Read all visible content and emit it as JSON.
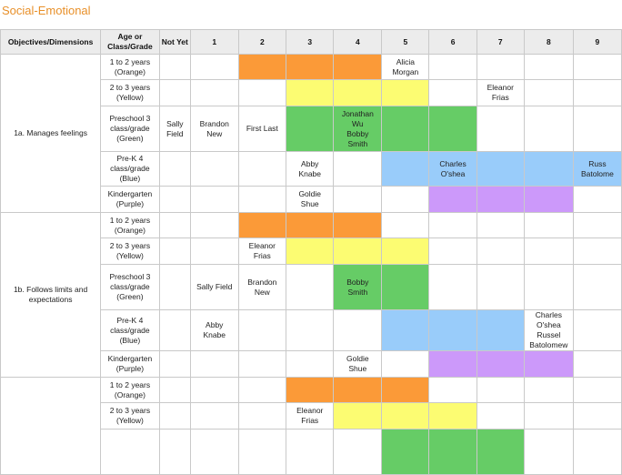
{
  "section_title": "Social-Emotional",
  "headers": [
    "Objectives/Dimensions",
    "Age or Class/Grade",
    "Not Yet",
    "1",
    "2",
    "3",
    "4",
    "5",
    "6",
    "7",
    "8",
    "9"
  ],
  "legend_colors": {
    "orange": "#fb9a38",
    "yellow": "#fcfc72",
    "green": "#66cc66",
    "blue": "#99ccfa",
    "purple": "#cc99fa"
  },
  "groups": [
    {
      "objective": "1a. Manages feelings",
      "rows": [
        {
          "age": "1 to 2 years\n(Orange)",
          "color": "orange",
          "band": [
            4,
            6
          ],
          "names": {
            "7": "Alicia\nMorgan"
          }
        },
        {
          "age": "2 to 3 years\n(Yellow)",
          "color": "yellow",
          "band": [
            5,
            7
          ],
          "names": {
            "9": "Eleanor\nFrias"
          }
        },
        {
          "age": "Preschool 3\nclass/grade\n(Green)",
          "color": "green",
          "band": [
            5,
            8
          ],
          "names": {
            "2": "Sally\nField",
            "3": "Brandon\nNew",
            "4": "First Last",
            "6": "Jonathan\nWu\nBobby\nSmith"
          }
        },
        {
          "age": "Pre-K 4\nclass/grade\n(Blue)",
          "color": "blue",
          "band": [
            7,
            11
          ],
          "names": {
            "5": "Abby\nKnabe",
            "8": "Charles\nO'shea",
            "11": "Russ\nBatolome"
          }
        },
        {
          "age": "Kindergarten\n(Purple)",
          "color": "purple",
          "band": [
            8,
            10
          ],
          "names": {
            "5": "Goldie\nShue"
          }
        }
      ]
    },
    {
      "objective": "1b. Follows limits and\nexpectations",
      "rows": [
        {
          "age": "1 to 2 years\n(Orange)",
          "color": "orange",
          "band": [
            4,
            6
          ],
          "names": {}
        },
        {
          "age": "2 to 3 years\n(Yellow)",
          "color": "yellow",
          "band": [
            5,
            7
          ],
          "names": {
            "4": "Eleanor\nFrias"
          }
        },
        {
          "age": "Preschool 3\nclass/grade\n(Green)",
          "color": "green",
          "band": [
            6,
            7
          ],
          "names": {
            "3": "Sally Field",
            "4": "Brandon\nNew",
            "6": "Bobby\nSmith"
          }
        },
        {
          "age": "Pre-K 4\nclass/grade\n(Blue)",
          "color": "blue",
          "band": [
            7,
            9
          ],
          "names": {
            "3": "Abby\nKnabe",
            "10": "Charles\nO'shea\nRussel\nBatolomew"
          }
        },
        {
          "age": "Kindergarten\n(Purple)",
          "color": "purple",
          "band": [
            8,
            10
          ],
          "names": {
            "6": "Goldie\nShue"
          }
        }
      ]
    },
    {
      "objective": "",
      "rows": [
        {
          "age": "1 to 2 years\n(Orange)",
          "color": "orange",
          "band": [
            5,
            7
          ],
          "names": {}
        },
        {
          "age": "2 to 3 years\n(Yellow)",
          "color": "yellow",
          "band": [
            6,
            8
          ],
          "names": {
            "5": "Eleanor\nFrias"
          }
        },
        {
          "age": "",
          "color": "green",
          "band": [
            7,
            9
          ],
          "names": {}
        }
      ]
    }
  ]
}
